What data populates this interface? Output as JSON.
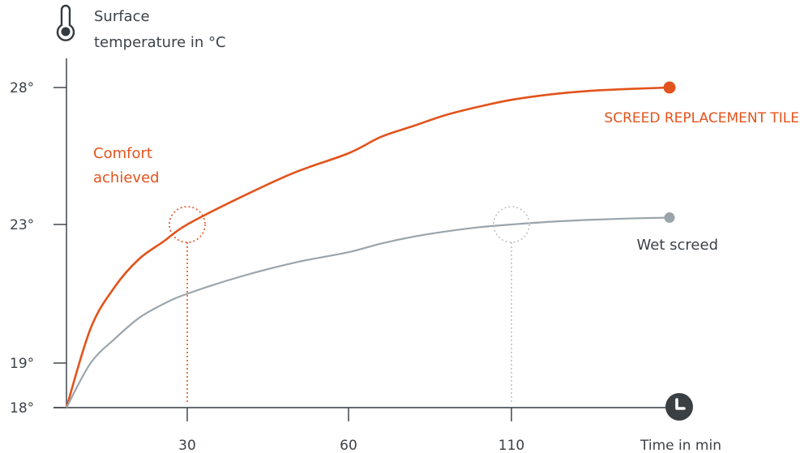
{
  "chart_data": {
    "type": "line",
    "ylabel_lines": [
      "Surface",
      "temperature  in °C"
    ],
    "xlabel": "Time in min",
    "y_ticks": [
      {
        "value": 18,
        "label": "18°"
      },
      {
        "value": 19,
        "label": "19°"
      },
      {
        "value": 23,
        "label": "23°"
      },
      {
        "value": 28,
        "label": "28°"
      }
    ],
    "x_ticks": [
      {
        "value": 30,
        "label": "30"
      },
      {
        "value": 60,
        "label": "60"
      },
      {
        "value": 110,
        "label": "110"
      }
    ],
    "series": [
      {
        "name": "SCREED REPLACEMENT TILE",
        "color": "#e2531c",
        "points": [
          [
            5,
            18
          ],
          [
            10,
            20.0
          ],
          [
            15,
            21.2
          ],
          [
            20,
            22.0
          ],
          [
            25,
            22.5
          ],
          [
            30,
            23.0
          ],
          [
            40,
            24.0
          ],
          [
            50,
            24.9
          ],
          [
            60,
            25.6
          ],
          [
            70,
            26.2
          ],
          [
            80,
            26.6
          ],
          [
            90,
            27.0
          ],
          [
            100,
            27.3
          ],
          [
            110,
            27.55
          ],
          [
            120,
            27.75
          ],
          [
            130,
            27.88
          ],
          [
            140,
            27.95
          ],
          [
            150,
            28.0
          ]
        ]
      },
      {
        "name": "Wet screed",
        "color": "#9aa5ab",
        "points": [
          [
            5,
            18
          ],
          [
            10,
            19.0
          ],
          [
            15,
            19.7
          ],
          [
            20,
            20.3
          ],
          [
            25,
            20.7
          ],
          [
            30,
            21.0
          ],
          [
            40,
            21.5
          ],
          [
            50,
            21.9
          ],
          [
            60,
            22.2
          ],
          [
            70,
            22.45
          ],
          [
            80,
            22.65
          ],
          [
            90,
            22.8
          ],
          [
            100,
            22.92
          ],
          [
            110,
            23.0
          ],
          [
            120,
            23.1
          ],
          [
            130,
            23.17
          ],
          [
            140,
            23.22
          ],
          [
            150,
            23.25
          ]
        ]
      }
    ],
    "annotations": [
      {
        "lines": [
          "Comfort",
          "achieved"
        ],
        "color": "#e2531c"
      },
      {
        "marker": {
          "x": 30,
          "y": 23.0
        },
        "color": "#e2531c"
      },
      {
        "marker": {
          "x": 110,
          "y": 23.0
        },
        "color": "#bcc3c7"
      }
    ],
    "grid": false
  },
  "icons": {
    "thermometer": "thermometer-icon",
    "clock": "clock-icon"
  }
}
